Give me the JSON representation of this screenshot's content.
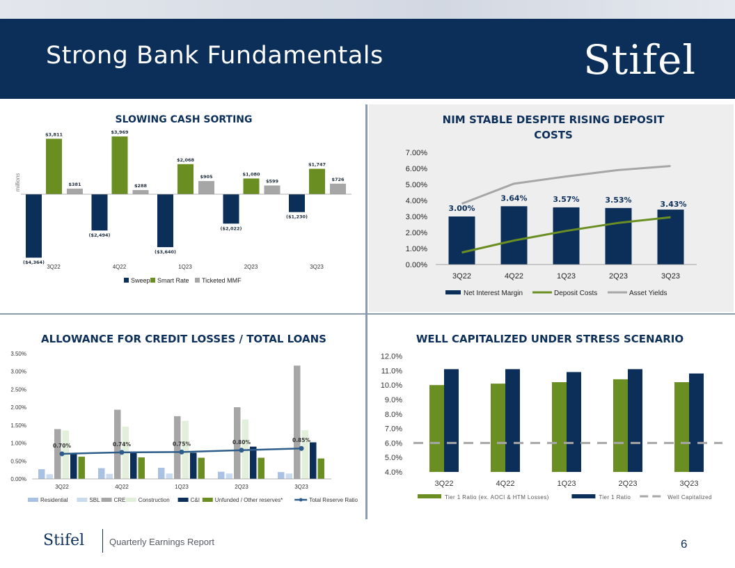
{
  "header": {
    "title": "Strong Bank Fundamentals",
    "logo_text": "Stifel"
  },
  "footer": {
    "logo_text": "Stifel",
    "subtitle": "Quarterly Earnings Report",
    "page_number": "6"
  },
  "colors": {
    "navy": "#0c2f5a",
    "green": "#6b8e23",
    "gray": "#a6a6a6"
  },
  "chart_data": [
    {
      "id": "cash-sorting",
      "type": "bar",
      "title": "SLOWING CASH SORTING",
      "ylabel": "millions",
      "categories": [
        "3Q22",
        "4Q22",
        "1Q23",
        "2Q23",
        "3Q23"
      ],
      "series": [
        {
          "name": "Sweep",
          "color": "#0c2f5a",
          "values": [
            -4364,
            -2494,
            -3640,
            -2022,
            -1230
          ],
          "labels": [
            "($4,364)",
            "($2,494)",
            "($3,640)",
            "($2,022)",
            "($1,230)"
          ]
        },
        {
          "name": "Smart Rate",
          "color": "#6b8e23",
          "values": [
            3811,
            3969,
            2068,
            1080,
            1747
          ],
          "labels": [
            "$3,811",
            "$3,969",
            "$2,068",
            "$1,080",
            "$1,747"
          ]
        },
        {
          "name": "Ticketed MMF",
          "color": "#a6a6a6",
          "values": [
            381,
            288,
            905,
            599,
            726
          ],
          "labels": [
            "$381",
            "$288",
            "$905",
            "$599",
            "$726"
          ]
        }
      ],
      "ylim": [
        -4500,
        4200
      ]
    },
    {
      "id": "nim",
      "type": "bar",
      "title_lines": [
        "NIM STABLE DESPITE RISING DEPOSIT",
        "COSTS"
      ],
      "categories": [
        "3Q22",
        "4Q22",
        "1Q23",
        "2Q23",
        "3Q23"
      ],
      "yticks": [
        "0.00%",
        "1.00%",
        "2.00%",
        "3.00%",
        "4.00%",
        "5.00%",
        "6.00%",
        "7.00%"
      ],
      "ylim": [
        0,
        7
      ],
      "bars": {
        "name": "Net Interest Margin",
        "color": "#0c2f5a",
        "values": [
          3.0,
          3.64,
          3.57,
          3.53,
          3.43
        ],
        "labels": [
          "3.00%",
          "3.64%",
          "3.57%",
          "3.53%",
          "3.43%"
        ]
      },
      "lines": [
        {
          "name": "Deposit Costs",
          "color": "#6b8e23",
          "values": [
            0.75,
            1.5,
            2.1,
            2.6,
            2.95
          ]
        },
        {
          "name": "Asset Yields",
          "color": "#a6a6a6",
          "values": [
            3.8,
            5.05,
            5.5,
            5.9,
            6.15
          ]
        }
      ]
    },
    {
      "id": "acl",
      "type": "bar",
      "title": "ALLOWANCE FOR CREDIT LOSSES / TOTAL LOANS",
      "categories": [
        "3Q22",
        "4Q22",
        "1Q23",
        "2Q23",
        "3Q23"
      ],
      "yticks": [
        "0.00%",
        "0.50%",
        "1.00%",
        "1.50%",
        "2.00%",
        "2.50%",
        "3.00%",
        "3.50%"
      ],
      "ylim": [
        0,
        3.5
      ],
      "series": [
        {
          "name": "Residential",
          "color": "#a9c1e3",
          "values": [
            0.27,
            0.3,
            0.31,
            0.2,
            0.19
          ]
        },
        {
          "name": "SBL",
          "color": "#c9d9ee",
          "values": [
            0.13,
            0.14,
            0.15,
            0.15,
            0.15
          ]
        },
        {
          "name": "CRE",
          "color": "#a6a6a6",
          "values": [
            1.39,
            1.93,
            1.75,
            2.0,
            3.16
          ]
        },
        {
          "name": "Construction",
          "color": "#e2efda",
          "values": [
            1.35,
            1.46,
            1.62,
            1.66,
            1.36
          ]
        },
        {
          "name": "C&I",
          "color": "#0c2f5a",
          "values": [
            0.72,
            0.75,
            0.73,
            0.9,
            1.02
          ]
        },
        {
          "name": "Unfunded / Other reserves*",
          "color": "#6b8e23",
          "values": [
            0.62,
            0.6,
            0.59,
            0.59,
            0.57
          ]
        }
      ],
      "line": {
        "name": "Total Reserve Ratio",
        "color": "#2e5c8a",
        "values": [
          0.7,
          0.74,
          0.75,
          0.8,
          0.85
        ],
        "labels": [
          "0.70%",
          "0.74%",
          "0.75%",
          "0.80%",
          "0.85%"
        ]
      }
    },
    {
      "id": "capital",
      "type": "bar",
      "title": "WELL CAPITALIZED UNDER STRESS SCENARIO",
      "categories": [
        "3Q22",
        "4Q22",
        "1Q23",
        "2Q23",
        "3Q23"
      ],
      "yticks": [
        "4.0%",
        "5.0%",
        "6.0%",
        "7.0%",
        "8.0%",
        "9.0%",
        "10.0%",
        "11.0%",
        "12.0%"
      ],
      "ylim": [
        4,
        12
      ],
      "series": [
        {
          "name": "Tier 1 Ratio (ex. AOCI & HTM Losses)",
          "color": "#6b8e23",
          "values": [
            10.0,
            10.1,
            10.2,
            10.4,
            10.2
          ]
        },
        {
          "name": "Tier 1 Ratio",
          "color": "#0c2f5a",
          "values": [
            11.1,
            11.1,
            10.9,
            11.1,
            10.8
          ]
        }
      ],
      "reference": {
        "name": "Well Capitalized",
        "color": "#a6a6a6",
        "value": 6.0
      }
    }
  ]
}
